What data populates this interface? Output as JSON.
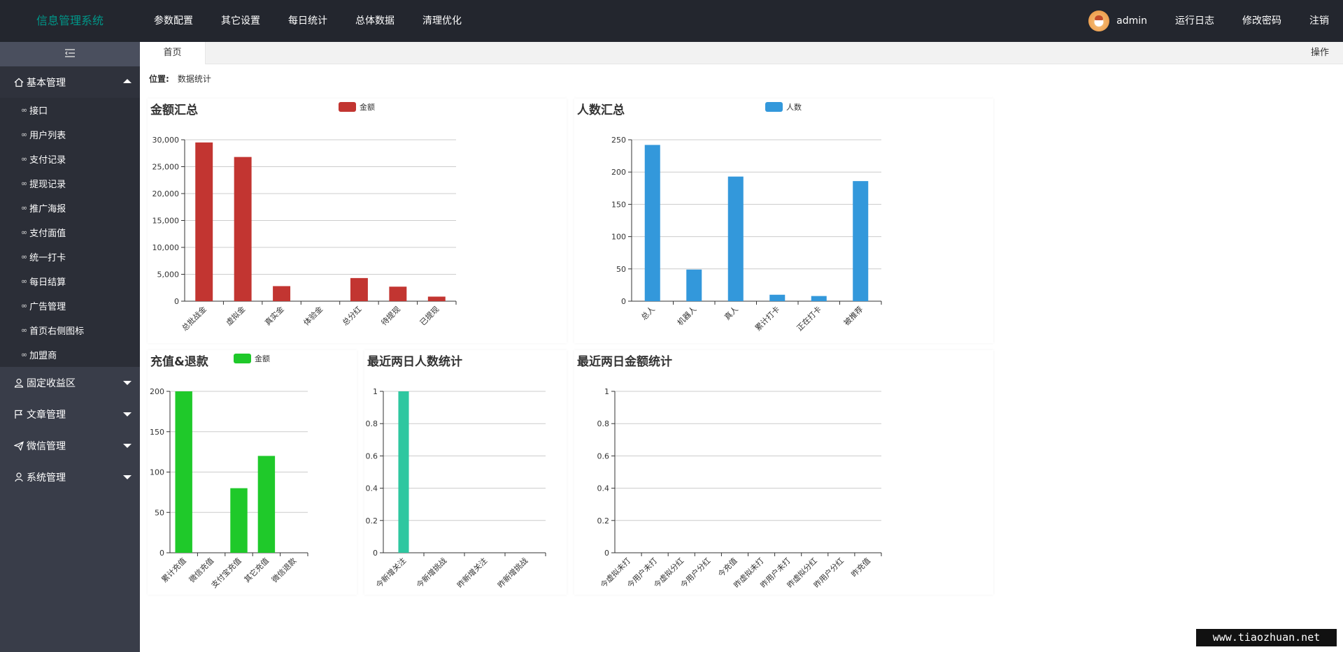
{
  "header": {
    "logo": "信息管理系统",
    "nav": [
      "参数配置",
      "其它设置",
      "每日统计",
      "总体数据",
      "清理优化"
    ],
    "user_name": "admin",
    "right_links": [
      "运行日志",
      "修改密码",
      "注销"
    ]
  },
  "sidebar": {
    "sections": [
      {
        "label": "基本管理",
        "icon": "home-icon",
        "expanded": true,
        "items": [
          "接口",
          "用户列表",
          "支付记录",
          "提现记录",
          "推广海报",
          "支付面值",
          "统一打卡",
          "每日结算",
          "广告管理",
          "首页右侧图标",
          "加盟商"
        ]
      },
      {
        "label": "固定收益区",
        "icon": "user-icon",
        "expanded": false,
        "items": []
      },
      {
        "label": "文章管理",
        "icon": "flag-icon",
        "expanded": false,
        "items": []
      },
      {
        "label": "微信管理",
        "icon": "send-icon",
        "expanded": false,
        "items": []
      },
      {
        "label": "系统管理",
        "icon": "person-icon",
        "expanded": false,
        "items": []
      }
    ]
  },
  "tabs": {
    "home": "首页",
    "operations": "操作"
  },
  "breadcrumb": {
    "label": "位置:",
    "value": "数据统计"
  },
  "watermark": "www.tiaozhuan.net",
  "colors": {
    "red": "#c23531",
    "blue": "#3398db",
    "green": "#1fc92a",
    "teal": "#2ec7a0"
  },
  "chart_data": [
    {
      "type": "bar",
      "title": "金额汇总",
      "series": [
        {
          "name": "金额",
          "values": [
            29500,
            26800,
            2800,
            0,
            4300,
            2700,
            850
          ]
        }
      ],
      "categories": [
        "总批战金",
        "虚拟金",
        "真实金",
        "体验金",
        "总分红",
        "待提现",
        "已提现"
      ],
      "ylim": [
        0,
        30000
      ],
      "yticks": [
        "0",
        "5,000",
        "10,000",
        "15,000",
        "20,000",
        "25,000",
        "30,000"
      ],
      "color": "#c23531"
    },
    {
      "type": "bar",
      "title": "人数汇总",
      "series": [
        {
          "name": "人数",
          "values": [
            242,
            49,
            193,
            10,
            8,
            186
          ]
        }
      ],
      "categories": [
        "总人",
        "机器人",
        "真人",
        "累计打卡",
        "正在打卡",
        "被推荐"
      ],
      "ylim": [
        0,
        250
      ],
      "yticks": [
        "0",
        "50",
        "100",
        "150",
        "200",
        "250"
      ],
      "color": "#3398db"
    },
    {
      "type": "bar",
      "title": "充值&退款",
      "series": [
        {
          "name": "金额",
          "values": [
            200,
            0,
            80,
            120,
            0
          ]
        }
      ],
      "categories": [
        "累计充值",
        "微信充值",
        "支付宝充值",
        "其它充值",
        "微信退款"
      ],
      "ylim": [
        0,
        200
      ],
      "yticks": [
        "0",
        "50",
        "100",
        "150",
        "200"
      ],
      "color": "#1fc92a"
    },
    {
      "type": "bar",
      "title": "最近两日人数统计",
      "series": [
        {
          "values": [
            1,
            0,
            0,
            0
          ]
        }
      ],
      "categories": [
        "今新增关注",
        "今新增挑战",
        "昨新增关注",
        "昨新增挑战"
      ],
      "ylim": [
        0,
        1
      ],
      "yticks": [
        "0",
        "0.2",
        "0.4",
        "0.6",
        "0.8",
        "1"
      ],
      "color": "#2ec7a0"
    },
    {
      "type": "bar",
      "title": "最近两日金额统计",
      "series": [
        {
          "values": [
            0,
            0,
            0,
            0,
            0,
            0,
            0,
            0,
            0,
            0
          ]
        }
      ],
      "categories": [
        "今虚拟未打",
        "今用户未打",
        "今虚拟分红",
        "今用户分红",
        "今充值",
        "昨虚拟未打",
        "昨用户未打",
        "昨虚拟分红",
        "昨用户分红",
        "昨充值"
      ],
      "ylim": [
        0,
        1
      ],
      "yticks": [
        "0",
        "0.2",
        "0.4",
        "0.6",
        "0.8",
        "1"
      ],
      "color": "#c23531"
    }
  ]
}
